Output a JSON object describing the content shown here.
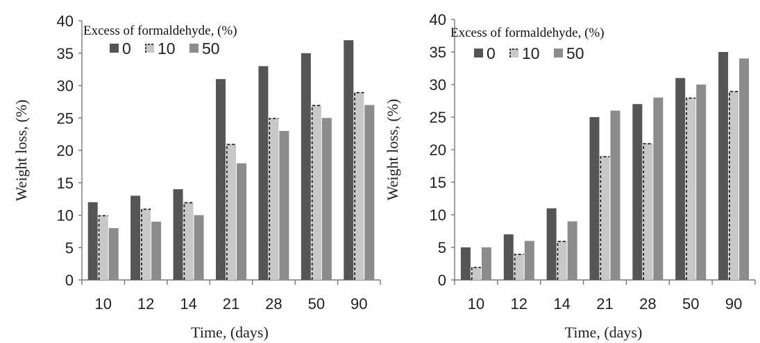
{
  "chart_data": [
    {
      "type": "bar",
      "categories": [
        "10",
        "12",
        "14",
        "21",
        "28",
        "50",
        "90"
      ],
      "legend_title": "Excess of formaldehyde, (%)",
      "series": [
        {
          "name": "0",
          "color": "#555555",
          "values": [
            12,
            13,
            14,
            31,
            33,
            35,
            37
          ]
        },
        {
          "name": "10",
          "color": "#c8c8c8",
          "pattern": "dashed-edge",
          "values": [
            10,
            11,
            12,
            21,
            25,
            27,
            29
          ]
        },
        {
          "name": "50",
          "color": "#8c8c8c",
          "values": [
            8,
            9,
            10,
            18,
            23,
            25,
            27
          ]
        }
      ],
      "xlabel": "Time, (days)",
      "ylabel": "Weight loss, (%)",
      "ylim": [
        0,
        40
      ],
      "yticks": [
        "0",
        "5",
        "10",
        "15",
        "20",
        "25",
        "30",
        "35",
        "40"
      ],
      "grid": false,
      "legend_position": "top-left"
    },
    {
      "type": "bar",
      "categories": [
        "10",
        "12",
        "14",
        "21",
        "28",
        "50",
        "90"
      ],
      "legend_title": "Excess of formaldehyde, (%)",
      "series": [
        {
          "name": "0",
          "color": "#555555",
          "values": [
            5,
            7,
            11,
            25,
            27,
            31,
            35
          ]
        },
        {
          "name": "10",
          "color": "#c8c8c8",
          "pattern": "dashed-edge",
          "values": [
            2,
            4,
            6,
            19,
            21,
            28,
            29
          ]
        },
        {
          "name": "50",
          "color": "#8c8c8c",
          "values": [
            5,
            6,
            9,
            26,
            28,
            30,
            34
          ]
        }
      ],
      "xlabel": "Time, (days)",
      "ylabel": "Weight loss, (%)",
      "ylim": [
        0,
        40
      ],
      "yticks": [
        "0",
        "5",
        "10",
        "15",
        "20",
        "25",
        "30",
        "35",
        "40"
      ],
      "grid": false,
      "legend_position": "top-left"
    }
  ]
}
